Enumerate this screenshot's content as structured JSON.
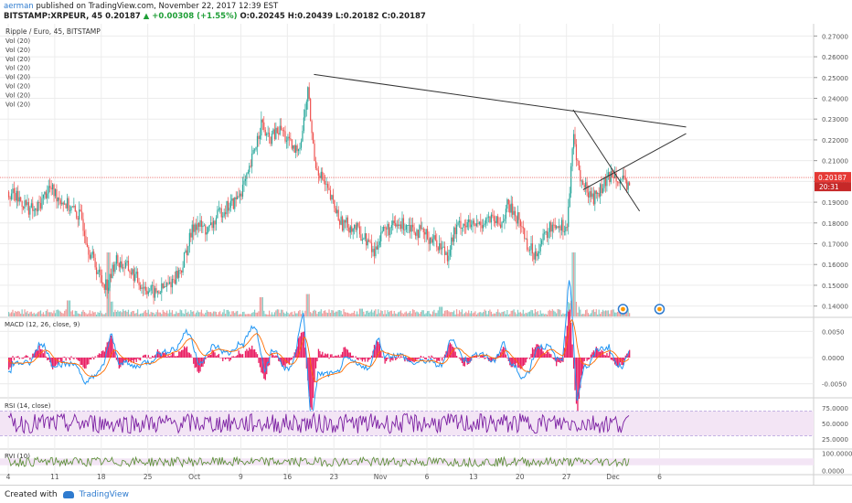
{
  "header": {
    "author": "aerman",
    "published": "published on TradingView.com, November 22, 2017 12:39 EST",
    "symbol": "BITSTAMP:XRPEUR, 45",
    "last": "0.20187",
    "change": "+0.00308 (+1.55%)",
    "open": "O:0.20245",
    "high": "H:0.20439",
    "low": "L:0.20182",
    "close": "C:0.20187"
  },
  "footer": {
    "created_with": "Created with",
    "brand": "TradingView"
  },
  "colors": {
    "up": "#26a69a",
    "down": "#ef5350",
    "macd": "#2196f3",
    "signal": "#ff6d00",
    "hist": "#e91e63",
    "rsi": "#7b1fa2",
    "grid": "#ececec",
    "accent": "#e53935"
  },
  "chart_data": [
    {
      "type": "candlestick",
      "title": "Ripple / Euro, 45, BITSTAMP",
      "indicator_labels": [
        "Vol (20)",
        "Vol (20)",
        "Vol (20)",
        "Vol (20)",
        "Vol (20)",
        "Vol (20)",
        "Vol (20)",
        "Vol (20)"
      ],
      "x_ticks": [
        "4",
        "11",
        "18",
        "25",
        "Oct",
        "9",
        "16",
        "23",
        "Nov",
        "6",
        "13",
        "20",
        "27",
        "Dec",
        "6"
      ],
      "y_ticks": [
        "0.27000",
        "0.26000",
        "0.25000",
        "0.24000",
        "0.23000",
        "0.22000",
        "0.21000",
        "0.20000",
        "0.19000",
        "0.18000",
        "0.17000",
        "0.16000",
        "0.15000",
        "0.14000"
      ],
      "ylim": [
        0.135,
        0.275
      ],
      "last_price": "0.20187",
      "countdown": "20:31",
      "price_path": [
        [
          0,
          0.195
        ],
        [
          4,
          0.185
        ],
        [
          6,
          0.197
        ],
        [
          9,
          0.188
        ],
        [
          11,
          0.182
        ],
        [
          12,
          0.168
        ],
        [
          14,
          0.152
        ],
        [
          15,
          0.15
        ],
        [
          16,
          0.162
        ],
        [
          18,
          0.158
        ],
        [
          20,
          0.15
        ],
        [
          22,
          0.146
        ],
        [
          24,
          0.15
        ],
        [
          26,
          0.158
        ],
        [
          27,
          0.17
        ],
        [
          28,
          0.18
        ],
        [
          30,
          0.176
        ],
        [
          32,
          0.186
        ],
        [
          34,
          0.19
        ],
        [
          36,
          0.202
        ],
        [
          37,
          0.216
        ],
        [
          38,
          0.228
        ],
        [
          39,
          0.22
        ],
        [
          41,
          0.225
        ],
        [
          42,
          0.219
        ],
        [
          43,
          0.214
        ],
        [
          44,
          0.22
        ],
        [
          45,
          0.244
        ],
        [
          46,
          0.21
        ],
        [
          48,
          0.195
        ],
        [
          50,
          0.18
        ],
        [
          52,
          0.178
        ],
        [
          54,
          0.171
        ],
        [
          55,
          0.165
        ],
        [
          56,
          0.176
        ],
        [
          58,
          0.178
        ],
        [
          60,
          0.18
        ],
        [
          62,
          0.175
        ],
        [
          64,
          0.172
        ],
        [
          66,
          0.165
        ],
        [
          67,
          0.175
        ],
        [
          68,
          0.18
        ],
        [
          70,
          0.178
        ],
        [
          72,
          0.182
        ],
        [
          74,
          0.179
        ],
        [
          75,
          0.188
        ],
        [
          76,
          0.185
        ],
        [
          77,
          0.18
        ],
        [
          78,
          0.17
        ],
        [
          79,
          0.165
        ],
        [
          80,
          0.17
        ],
        [
          82,
          0.18
        ],
        [
          84,
          0.178
        ],
        [
          85,
          0.222
        ],
        [
          86,
          0.2
        ],
        [
          88,
          0.192
        ],
        [
          90,
          0.2
        ],
        [
          91,
          0.205
        ],
        [
          93,
          0.197
        ],
        [
          93.5,
          0.201
        ]
      ],
      "volume_spikes": [
        [
          0,
          0.05
        ],
        [
          9,
          0.25
        ],
        [
          15,
          1.0
        ],
        [
          38,
          0.3
        ],
        [
          45,
          0.35
        ],
        [
          53,
          0.12
        ],
        [
          65,
          0.15
        ],
        [
          85,
          1.0
        ],
        [
          93,
          0.12
        ]
      ],
      "trendlines": [
        {
          "from": [
            46,
            0.2515
          ],
          "to": [
            102,
            0.2262
          ]
        },
        {
          "from": [
            85,
            0.2345
          ],
          "to": [
            95,
            0.1857
          ]
        },
        {
          "from": [
            86.5,
            0.196
          ],
          "to": [
            102,
            0.223
          ]
        }
      ],
      "event_markers": [
        92.5,
        98
      ]
    },
    {
      "type": "line",
      "title": "MACD (12, 26, close, 9)",
      "y_ticks": [
        "0.0050",
        "0.0000",
        "-0.0050"
      ],
      "ylim": [
        -0.0075,
        0.0075
      ],
      "series": [
        {
          "name": "MACD"
        },
        {
          "name": "Signal"
        },
        {
          "name": "Histogram"
        }
      ]
    },
    {
      "type": "line",
      "title": "RSI (14, close)",
      "y_ticks": [
        "75.0000",
        "50.0000",
        "25.0000"
      ],
      "ylim": [
        10,
        90
      ],
      "band": [
        30,
        70
      ]
    },
    {
      "type": "line",
      "title": "RVI (10)",
      "y_ticks": [
        "100.0000",
        "0.0000"
      ],
      "ylim": [
        -20,
        120
      ],
      "band": [
        30,
        70
      ]
    }
  ]
}
